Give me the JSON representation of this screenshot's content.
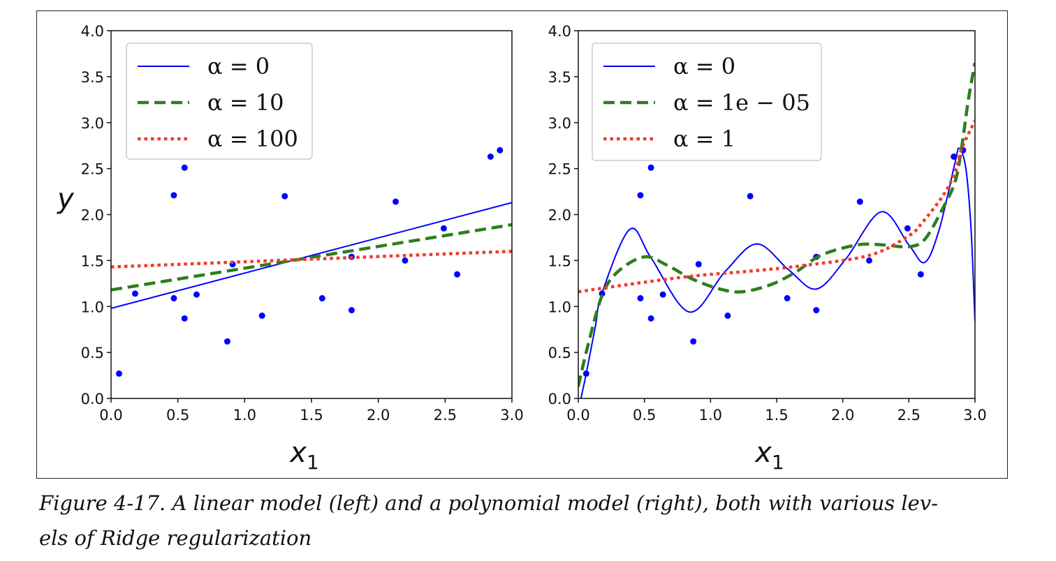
{
  "chart_data": [
    {
      "type": "line",
      "title": "",
      "xlabel": "x1",
      "ylabel": "y",
      "xlim": [
        0,
        3
      ],
      "ylim": [
        0,
        4
      ],
      "xticks": [
        "0.0",
        "0.5",
        "1.0",
        "1.5",
        "2.0",
        "2.5",
        "3.0"
      ],
      "yticks": [
        "0.0",
        "0.5",
        "1.0",
        "1.5",
        "2.0",
        "2.5",
        "3.0",
        "3.5",
        "4.0"
      ],
      "legend_position": "top-left",
      "points": {
        "x": [
          0.06,
          0.18,
          0.47,
          0.47,
          0.55,
          0.55,
          0.64,
          0.87,
          0.91,
          1.13,
          1.3,
          1.58,
          1.8,
          1.8,
          2.13,
          2.2,
          2.49,
          2.59,
          2.84,
          2.91
        ],
        "y": [
          0.27,
          1.14,
          2.21,
          1.09,
          2.51,
          0.87,
          1.13,
          0.62,
          1.46,
          0.9,
          2.2,
          1.09,
          1.54,
          0.96,
          2.14,
          1.5,
          1.85,
          1.35,
          2.63,
          2.7
        ]
      },
      "series": [
        {
          "name": "α = 0",
          "color": "#0000ff",
          "style": "solid",
          "x": [
            0,
            3
          ],
          "y": [
            0.98,
            2.13
          ]
        },
        {
          "name": "α = 10",
          "color": "#2e7d1e",
          "style": "dashed",
          "x": [
            0,
            3
          ],
          "y": [
            1.18,
            1.89
          ]
        },
        {
          "name": "α = 100",
          "color": "#f03a2a",
          "style": "dotted",
          "x": [
            0,
            3
          ],
          "y": [
            1.43,
            1.6
          ]
        }
      ]
    },
    {
      "type": "line",
      "title": "",
      "xlabel": "x1",
      "ylabel": "",
      "xlim": [
        0,
        3
      ],
      "ylim": [
        0,
        4
      ],
      "xticks": [
        "0.0",
        "0.5",
        "1.0",
        "1.5",
        "2.0",
        "2.5",
        "3.0"
      ],
      "yticks": [
        "0.0",
        "0.5",
        "1.0",
        "1.5",
        "2.0",
        "2.5",
        "3.0",
        "3.5",
        "4.0"
      ],
      "legend_position": "top-left",
      "points": {
        "x": [
          0.06,
          0.18,
          0.47,
          0.47,
          0.55,
          0.55,
          0.64,
          0.87,
          0.91,
          1.13,
          1.3,
          1.58,
          1.8,
          1.8,
          2.13,
          2.2,
          2.49,
          2.59,
          2.84,
          2.91
        ],
        "y": [
          0.27,
          1.14,
          2.21,
          1.09,
          2.51,
          0.87,
          1.13,
          0.62,
          1.46,
          0.9,
          2.2,
          1.09,
          1.54,
          0.96,
          2.14,
          1.5,
          1.85,
          1.35,
          2.63,
          2.7
        ]
      },
      "series": [
        {
          "name": "α = 0",
          "color": "#0000ff",
          "style": "solid",
          "x": [
            0.02,
            0.06,
            0.13,
            0.18,
            0.39,
            0.55,
            0.84,
            1.11,
            1.35,
            1.59,
            1.8,
            2.02,
            2.29,
            2.5,
            2.62,
            2.73,
            2.85,
            2.88,
            2.93,
            2.97,
            3.0
          ],
          "y": [
            0.0,
            0.27,
            0.79,
            1.15,
            1.84,
            1.53,
            0.94,
            1.38,
            1.68,
            1.4,
            1.19,
            1.51,
            2.03,
            1.67,
            1.48,
            1.84,
            2.57,
            2.72,
            2.51,
            1.85,
            0.84
          ]
        },
        {
          "name": "α = 1e − 05",
          "color": "#2e7d1e",
          "style": "dashed",
          "x": [
            0.0,
            0.07,
            0.18,
            0.3,
            0.5,
            0.67,
            0.86,
            1.07,
            1.24,
            1.46,
            1.65,
            1.84,
            2.11,
            2.31,
            2.5,
            2.62,
            2.75,
            2.85,
            2.9,
            2.95,
            3.0
          ],
          "y": [
            0.13,
            0.56,
            1.12,
            1.38,
            1.54,
            1.45,
            1.3,
            1.19,
            1.16,
            1.24,
            1.38,
            1.56,
            1.67,
            1.67,
            1.65,
            1.73,
            2.05,
            2.36,
            2.74,
            3.25,
            3.65
          ]
        },
        {
          "name": "α = 1",
          "color": "#f03a2a",
          "style": "dotted",
          "x": [
            0.0,
            0.38,
            0.86,
            1.34,
            1.73,
            2.21,
            2.5,
            2.6,
            2.76,
            2.85,
            2.9,
            3.0
          ],
          "y": [
            1.16,
            1.24,
            1.33,
            1.39,
            1.45,
            1.56,
            1.77,
            1.91,
            2.21,
            2.46,
            2.72,
            3.02
          ]
        }
      ]
    }
  ],
  "caption": {
    "line1": "Figure 4-17. A linear model (left) and a polynomial model (right), both with various lev-",
    "line2": "els of Ridge regularization"
  }
}
